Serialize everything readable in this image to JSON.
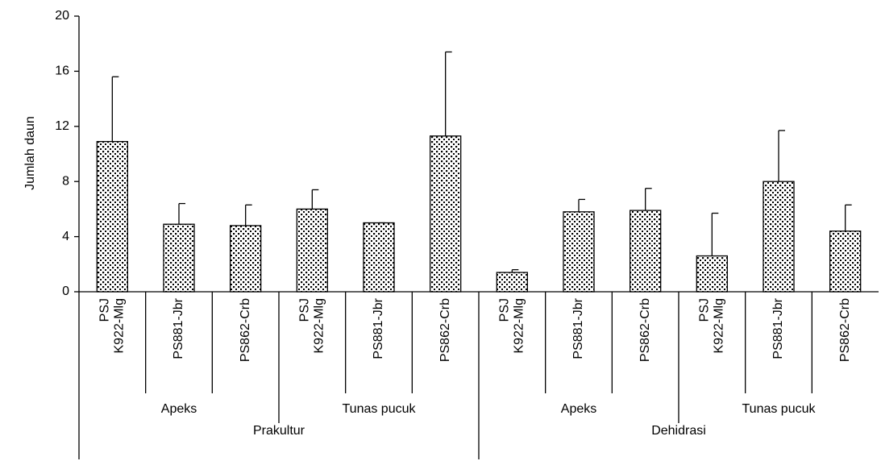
{
  "chart_data": {
    "type": "bar",
    "y_label": "Jumlah daun",
    "category_groups": [
      {
        "name": "Prakultur",
        "subgroups": [
          {
            "name": "Apeks",
            "categories": [
              [
                "PSJ",
                "K922-Mlg"
              ],
              [
                "PS881-Jbr"
              ],
              [
                "PS862-Crb"
              ]
            ]
          },
          {
            "name": "Tunas pucuk",
            "categories": [
              [
                "PSJ",
                "K922-Mlg"
              ],
              [
                "PS881-Jbr"
              ],
              [
                "PS862-Crb"
              ]
            ]
          }
        ]
      },
      {
        "name": "Dehidrasi",
        "subgroups": [
          {
            "name": "Apeks",
            "categories": [
              [
                "PSJ",
                "K922-Mlg"
              ],
              [
                "PS881-Jbr"
              ],
              [
                "PS862-Crb"
              ]
            ]
          },
          {
            "name": "Tunas pucuk",
            "categories": [
              [
                "PSJ",
                "K922-Mlg"
              ],
              [
                "PS881-Jbr"
              ],
              [
                "PS862-Crb"
              ]
            ]
          }
        ]
      }
    ],
    "values": [
      10.9,
      4.9,
      4.8,
      6.0,
      5.0,
      11.3,
      1.4,
      5.8,
      5.9,
      2.6,
      8.0,
      4.4
    ],
    "errors": [
      4.7,
      1.5,
      1.5,
      1.4,
      0,
      6.1,
      0.2,
      0.9,
      1.6,
      3.1,
      3.7,
      1.9
    ],
    "color": "#000000",
    "ylim": [
      0,
      20
    ],
    "yticks": [
      0,
      4,
      8,
      12,
      16,
      20
    ],
    "grid": false
  }
}
